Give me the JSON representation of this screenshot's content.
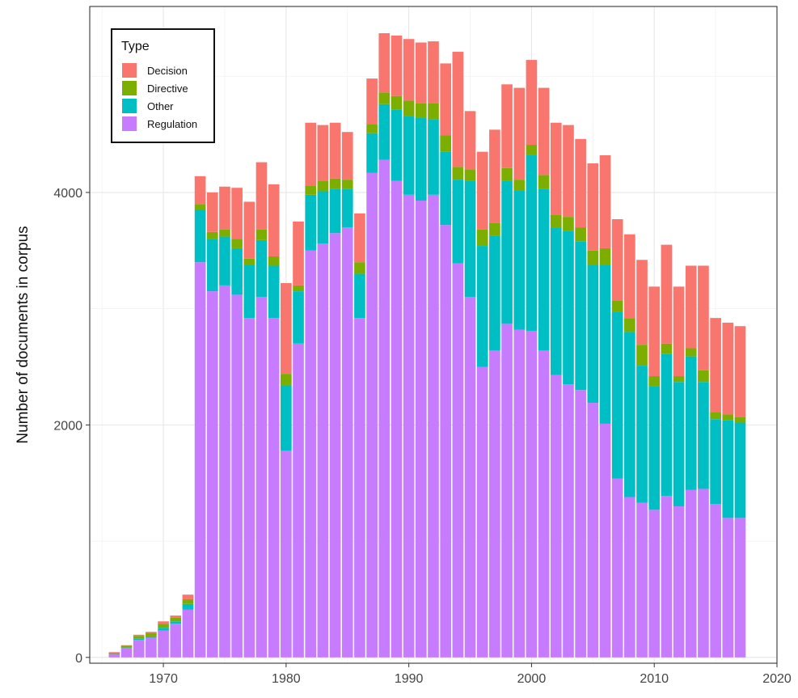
{
  "chart_data": {
    "type": "bar",
    "stacked": true,
    "title": "",
    "xlabel": "",
    "ylabel": "Number of documents in corpus",
    "xlim": [
      1964,
      2020
    ],
    "ylim": [
      -50,
      5600
    ],
    "x_ticks": [
      1970,
      1980,
      1990,
      2000,
      2010,
      2020
    ],
    "y_ticks": [
      0,
      2000,
      4000
    ],
    "grid": true,
    "legend": {
      "title": "Type",
      "position": "top-left"
    },
    "x": [
      1966,
      1967,
      1968,
      1969,
      1970,
      1971,
      1972,
      1973,
      1974,
      1975,
      1976,
      1977,
      1978,
      1979,
      1980,
      1981,
      1982,
      1983,
      1984,
      1985,
      1986,
      1987,
      1988,
      1989,
      1990,
      1991,
      1992,
      1993,
      1994,
      1995,
      1996,
      1997,
      1998,
      1999,
      2000,
      2001,
      2002,
      2003,
      2004,
      2005,
      2006,
      2007,
      2008,
      2009,
      2010,
      2011,
      2012,
      2013,
      2014,
      2015,
      2016,
      2017
    ],
    "series": [
      {
        "name": "Regulation",
        "color": "#c77cff",
        "values": [
          30,
          80,
          150,
          170,
          230,
          290,
          410,
          3400,
          3150,
          3200,
          3120,
          2920,
          3100,
          2920,
          1780,
          2700,
          3500,
          3560,
          3650,
          3700,
          2920,
          4170,
          4280,
          4100,
          3980,
          3930,
          3980,
          3720,
          3390,
          3100,
          2500,
          2640,
          2870,
          2820,
          2810,
          2640,
          2430,
          2350,
          2300,
          2190,
          2010,
          1540,
          1380,
          1330,
          1270,
          1390,
          1300,
          1440,
          1450,
          1320,
          1200,
          1200
        ]
      },
      {
        "name": "Other",
        "color": "#00bfc4",
        "values": [
          0,
          5,
          10,
          10,
          25,
          20,
          50,
          450,
          450,
          420,
          400,
          460,
          490,
          450,
          560,
          450,
          480,
          450,
          380,
          330,
          380,
          340,
          480,
          610,
          680,
          710,
          650,
          630,
          720,
          1000,
          1040,
          990,
          1230,
          1200,
          1510,
          1390,
          1270,
          1320,
          1280,
          1190,
          1370,
          1430,
          1420,
          1180,
          1060,
          1220,
          1070,
          1150,
          920,
          730,
          840,
          820
        ]
      },
      {
        "name": "Directive",
        "color": "#7cae00",
        "values": [
          10,
          15,
          25,
          30,
          35,
          30,
          40,
          50,
          60,
          60,
          80,
          50,
          90,
          80,
          100,
          50,
          80,
          90,
          90,
          80,
          100,
          80,
          100,
          120,
          130,
          130,
          140,
          140,
          110,
          100,
          140,
          110,
          110,
          90,
          90,
          120,
          110,
          120,
          120,
          120,
          140,
          100,
          120,
          180,
          90,
          90,
          50,
          70,
          100,
          60,
          50,
          50
        ]
      },
      {
        "name": "Decision",
        "color": "#f8766d",
        "values": [
          5,
          5,
          10,
          10,
          20,
          20,
          40,
          240,
          340,
          370,
          440,
          490,
          580,
          620,
          780,
          550,
          540,
          480,
          480,
          410,
          420,
          390,
          510,
          520,
          530,
          520,
          530,
          620,
          990,
          500,
          670,
          800,
          720,
          790,
          730,
          750,
          790,
          790,
          760,
          750,
          800,
          700,
          720,
          730,
          770,
          850,
          770,
          710,
          900,
          810,
          790,
          780
        ]
      }
    ]
  }
}
